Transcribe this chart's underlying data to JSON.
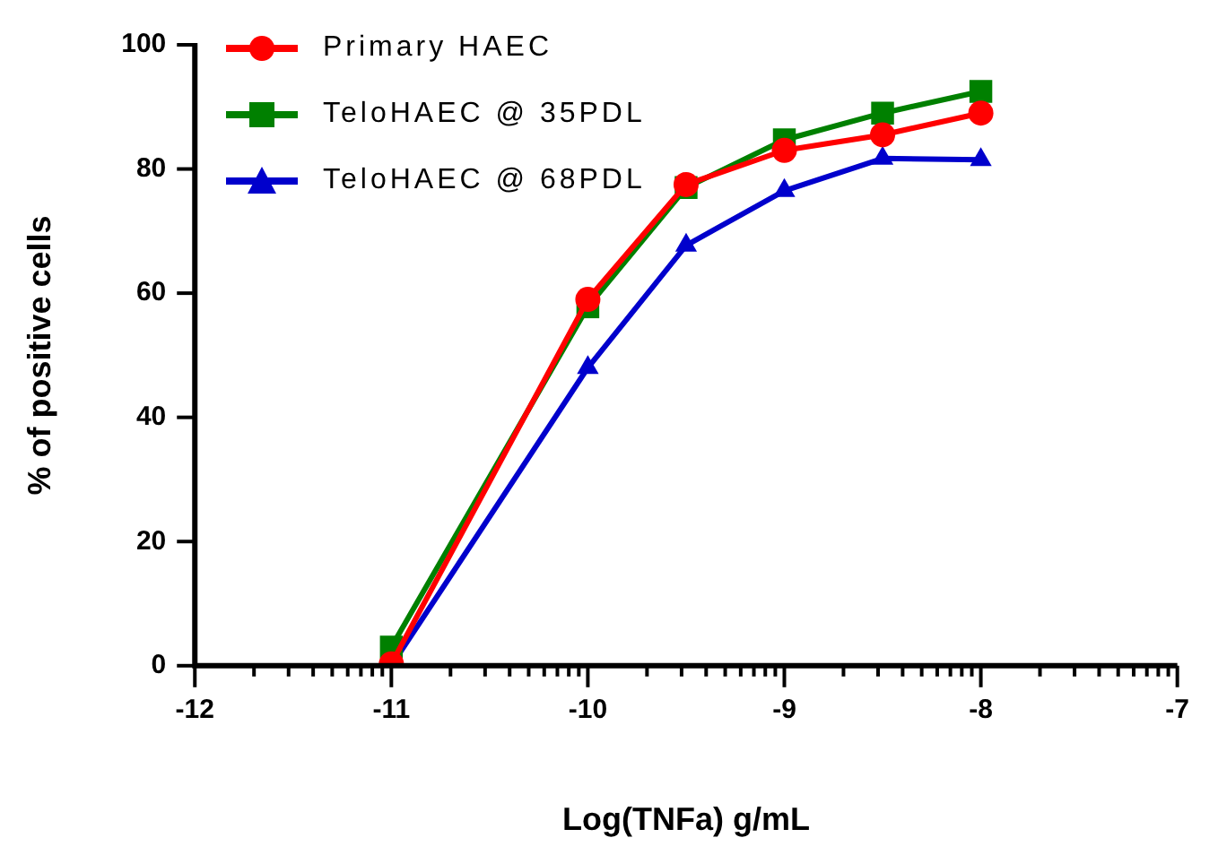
{
  "chart_data": {
    "type": "line",
    "xlabel": "Log(TNFa) g/mL",
    "ylabel": "% of positive cells",
    "x": [
      -11,
      -10,
      -9.5,
      -9,
      -8.5,
      -8
    ],
    "series": [
      {
        "name": "Primary HAEC",
        "color": "#ff0000",
        "marker": "circle",
        "values": [
          0.3,
          59,
          77.5,
          83,
          85.5,
          89
        ]
      },
      {
        "name": "TeloHAEC @ 35PDL",
        "color": "#008000",
        "marker": "square",
        "values": [
          3,
          57.8,
          77,
          84.7,
          89,
          92.5
        ]
      },
      {
        "name": "TeloHAEC @ 68PDL",
        "color": "#0000cc",
        "marker": "triangle",
        "values": [
          0,
          48,
          67.7,
          76.5,
          81.7,
          81.5
        ]
      }
    ],
    "xlim": [
      -12,
      -7
    ],
    "ylim": [
      0,
      100
    ],
    "xticks": [
      -12,
      {
        "value": -11.699,
        "label": null
      },
      {
        "value": -11.523,
        "label": null
      },
      {
        "value": -11.398,
        "label": null
      },
      {
        "value": -11.301,
        "label": null
      },
      {
        "value": -11.222,
        "label": null
      },
      {
        "value": -11.155,
        "label": null
      },
      {
        "value": -11.097,
        "label": null
      },
      {
        "value": -11.046,
        "label": null
      },
      -11,
      {
        "value": -10.699,
        "label": null
      },
      {
        "value": -10.523,
        "label": null
      },
      {
        "value": -10.398,
        "label": null
      },
      {
        "value": -10.301,
        "label": null
      },
      {
        "value": -10.222,
        "label": null
      },
      {
        "value": -10.155,
        "label": null
      },
      {
        "value": -10.097,
        "label": null
      },
      {
        "value": -10.046,
        "label": null
      },
      -10,
      {
        "value": -9.699,
        "label": null
      },
      {
        "value": -9.523,
        "label": null
      },
      {
        "value": -9.398,
        "label": null
      },
      {
        "value": -9.301,
        "label": null
      },
      {
        "value": -9.222,
        "label": null
      },
      {
        "value": -9.155,
        "label": null
      },
      {
        "value": -9.097,
        "label": null
      },
      {
        "value": -9.046,
        "label": null
      },
      -9,
      {
        "value": -8.699,
        "label": null
      },
      {
        "value": -8.523,
        "label": null
      },
      {
        "value": -8.398,
        "label": null
      },
      {
        "value": -8.301,
        "label": null
      },
      {
        "value": -8.222,
        "label": null
      },
      {
        "value": -8.155,
        "label": null
      },
      {
        "value": -8.097,
        "label": null
      },
      {
        "value": -8.046,
        "label": null
      },
      -8,
      {
        "value": -7.699,
        "label": null
      },
      {
        "value": -7.523,
        "label": null
      },
      {
        "value": -7.398,
        "label": null
      },
      {
        "value": -7.301,
        "label": null
      },
      {
        "value": -7.222,
        "label": null
      },
      {
        "value": -7.155,
        "label": null
      },
      {
        "value": -7.097,
        "label": null
      },
      {
        "value": -7.046,
        "label": null
      },
      -7
    ],
    "yticks": [
      0,
      20,
      40,
      60,
      80,
      100
    ],
    "grid": false,
    "legend": "top left",
    "line_style": "solid"
  }
}
